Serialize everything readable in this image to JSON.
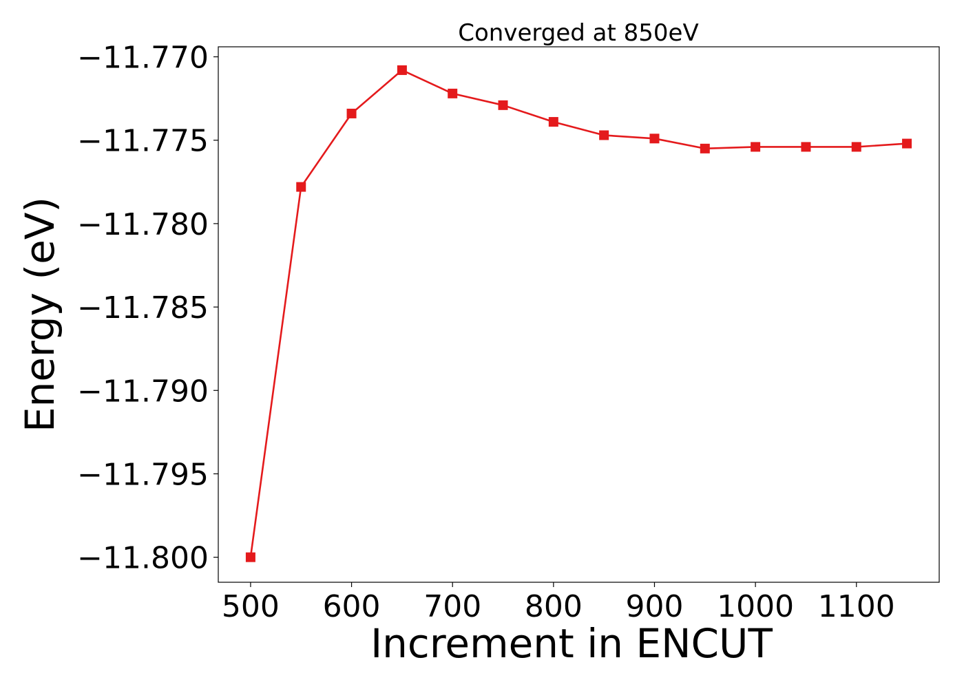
{
  "chart_data": {
    "type": "line",
    "title": "Converged at 850eV",
    "xlabel": "Increment in ENCUT",
    "ylabel": "Energy (eV)",
    "x": [
      500,
      550,
      600,
      650,
      700,
      750,
      800,
      850,
      900,
      950,
      1000,
      1050,
      1100,
      1150
    ],
    "series": [
      {
        "values": [
          -11.8,
          -11.7778,
          -11.7734,
          -11.7708,
          -11.7722,
          -11.7729,
          -11.7739,
          -11.7747,
          -11.7749,
          -11.7755,
          -11.7754,
          -11.7754,
          -11.7754,
          -11.7752
        ],
        "color": "#e41a1c",
        "marker": "square"
      }
    ],
    "xlim": [
      468,
      1182
    ],
    "ylim": [
      -11.8015,
      -11.7694
    ],
    "xticks": [
      500,
      600,
      700,
      800,
      900,
      1000,
      1100
    ],
    "xtick_labels": [
      "500",
      "600",
      "700",
      "800",
      "900",
      "1000",
      "1100"
    ],
    "yticks": [
      -11.77,
      -11.775,
      -11.78,
      -11.785,
      -11.79,
      -11.795,
      -11.8
    ],
    "ytick_labels": [
      "−11.770",
      "−11.775",
      "−11.780",
      "−11.785",
      "−11.790",
      "−11.795",
      "−11.800"
    ],
    "grid": false,
    "legend": "none"
  }
}
